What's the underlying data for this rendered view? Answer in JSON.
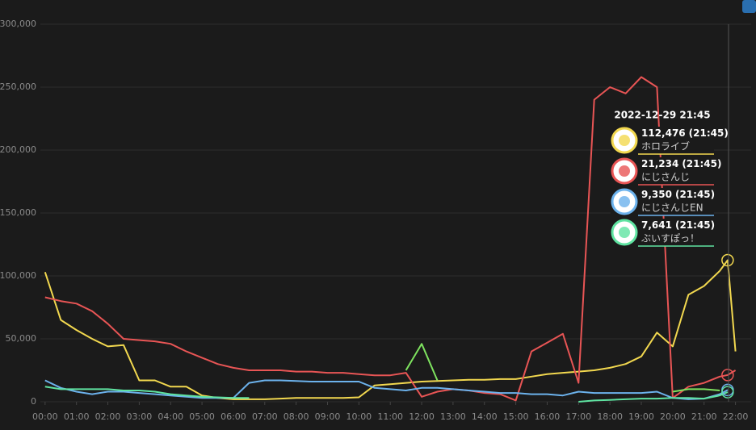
{
  "chart_data": {
    "type": "line",
    "x": [
      0,
      0.5,
      1,
      1.5,
      2,
      2.5,
      3,
      3.5,
      4,
      4.5,
      5,
      5.5,
      6,
      6.5,
      7,
      7.5,
      8,
      8.5,
      9,
      9.5,
      10,
      10.5,
      11,
      11.5,
      12,
      12.5,
      13,
      13.5,
      14,
      14.5,
      15,
      15.5,
      16,
      16.5,
      17,
      17.5,
      18,
      18.5,
      19,
      19.5,
      20,
      20.5,
      21,
      21.5,
      21.75,
      22
    ],
    "xlim": [
      -0.15,
      22.5
    ],
    "xticks": [
      {
        "value": 0,
        "label": "00:00"
      },
      {
        "value": 1,
        "label": "01:00"
      },
      {
        "value": 2,
        "label": "02:00"
      },
      {
        "value": 3,
        "label": "03:00"
      },
      {
        "value": 4,
        "label": "04:00"
      },
      {
        "value": 5,
        "label": "05:00"
      },
      {
        "value": 6,
        "label": "06:00"
      },
      {
        "value": 7,
        "label": "07:00"
      },
      {
        "value": 8,
        "label": "08:00"
      },
      {
        "value": 9,
        "label": "09:00"
      },
      {
        "value": 10,
        "label": "10:00"
      },
      {
        "value": 11,
        "label": "11:00"
      },
      {
        "value": 12,
        "label": "12:00"
      },
      {
        "value": 13,
        "label": "13:00"
      },
      {
        "value": 14,
        "label": "14:00"
      },
      {
        "value": 15,
        "label": "15:00"
      },
      {
        "value": 16,
        "label": "16:00"
      },
      {
        "value": 17,
        "label": "17:00"
      },
      {
        "value": 18,
        "label": "18:00"
      },
      {
        "value": 19,
        "label": "19:00"
      },
      {
        "value": 20,
        "label": "20:00"
      },
      {
        "value": 21,
        "label": "21:00"
      },
      {
        "value": 22,
        "label": "22:00"
      }
    ],
    "ylim": [
      0,
      300000
    ],
    "yticks": [
      0,
      {
        "value": 50000,
        "label": "50,000"
      },
      {
        "value": 100000,
        "label": "100,000"
      },
      {
        "value": 150000,
        "label": "150,000"
      },
      {
        "value": 200000,
        "label": "200,000"
      },
      {
        "value": 250000,
        "label": "250,000"
      },
      {
        "value": 300000,
        "label": "300,000"
      }
    ],
    "grid": true,
    "tooltip": {
      "title": "2022-12-29 21:45",
      "time": "(21:45)"
    },
    "series": [
      {
        "name": "ホロライブ",
        "color": "#f2d84f",
        "values": [
          103000,
          65000,
          57000,
          50000,
          44000,
          45000,
          17000,
          17000,
          12000,
          12000,
          5000,
          3000,
          2000,
          2000,
          2000,
          2500,
          3000,
          3000,
          3000,
          3000,
          3500,
          13000,
          14000,
          15000,
          16000,
          16500,
          17000,
          17500,
          17500,
          18000,
          18000,
          20000,
          22000,
          23000,
          24000,
          25000,
          27000,
          30000,
          36000,
          55000,
          44000,
          85000,
          92000,
          104000,
          112476,
          40000
        ],
        "value_labels": [
          null,
          null,
          null,
          null,
          null,
          null,
          null,
          null,
          null,
          null,
          null,
          null,
          null,
          null,
          null,
          null,
          null,
          null,
          null,
          null,
          null,
          null,
          null,
          null,
          null,
          null,
          null,
          null,
          null,
          null,
          null,
          null,
          null,
          null,
          null,
          null,
          null,
          null,
          null,
          null,
          null,
          null,
          null,
          null,
          "112,476",
          null
        ]
      },
      {
        "name": "にじさんじ",
        "color": "#e85555",
        "values": [
          83000,
          80000,
          78000,
          72000,
          62000,
          50000,
          49000,
          48000,
          46000,
          40000,
          35000,
          30000,
          27000,
          25000,
          25000,
          25000,
          24000,
          24000,
          23000,
          23000,
          22000,
          21000,
          21000,
          23000,
          4000,
          8000,
          10000,
          9000,
          7000,
          6000,
          1000,
          40000,
          47000,
          54000,
          15000,
          240000,
          250000,
          245000,
          258000,
          250000,
          3000,
          12000,
          15000,
          20000,
          21234,
          25000
        ],
        "value_labels": [
          null,
          null,
          null,
          null,
          null,
          null,
          null,
          null,
          null,
          null,
          null,
          null,
          null,
          null,
          null,
          null,
          null,
          null,
          null,
          null,
          null,
          null,
          null,
          null,
          null,
          null,
          null,
          null,
          null,
          null,
          null,
          null,
          null,
          null,
          null,
          null,
          null,
          null,
          null,
          null,
          null,
          null,
          null,
          null,
          "21,234",
          null
        ]
      },
      {
        "name": "にじさんじEN",
        "color": "#6cb2ec",
        "values": [
          17000,
          11000,
          8000,
          6000,
          8000,
          8000,
          7000,
          6000,
          5000,
          4000,
          3000,
          3000,
          3000,
          15000,
          17000,
          17000,
          16500,
          16000,
          16000,
          16000,
          16000,
          11000,
          10000,
          9000,
          11000,
          11000,
          10000,
          9000,
          8000,
          7000,
          7000,
          6000,
          6000,
          5000,
          8000,
          7000,
          7000,
          7000,
          7000,
          8000,
          3000,
          2000,
          2500,
          6000,
          9350,
          null
        ],
        "value_labels": [
          null,
          null,
          null,
          null,
          null,
          null,
          null,
          null,
          null,
          null,
          null,
          null,
          null,
          null,
          null,
          null,
          null,
          null,
          null,
          null,
          null,
          null,
          null,
          null,
          null,
          null,
          null,
          null,
          null,
          null,
          null,
          null,
          null,
          null,
          null,
          null,
          null,
          null,
          null,
          null,
          null,
          null,
          null,
          null,
          "9,350",
          null
        ]
      },
      {
        "name": "ぶいすぽっ！",
        "color": "#5fe3a1",
        "values": [
          12000,
          10000,
          10000,
          10000,
          10000,
          9000,
          9000,
          8000,
          6000,
          5000,
          4000,
          3500,
          3000,
          3000,
          null,
          null,
          null,
          null,
          null,
          null,
          null,
          null,
          null,
          null,
          null,
          null,
          null,
          null,
          null,
          null,
          null,
          null,
          null,
          null,
          0,
          1000,
          1500,
          2000,
          2500,
          2500,
          3000,
          3000,
          2500,
          5000,
          7641,
          null
        ],
        "value_labels": [
          null,
          null,
          null,
          null,
          null,
          null,
          null,
          null,
          null,
          null,
          null,
          null,
          null,
          null,
          null,
          null,
          null,
          null,
          null,
          null,
          null,
          null,
          null,
          null,
          null,
          null,
          null,
          null,
          null,
          null,
          null,
          null,
          null,
          null,
          null,
          null,
          null,
          null,
          null,
          null,
          null,
          null,
          null,
          null,
          "7,641",
          null
        ]
      },
      {
        "color": "#7ee35f",
        "values": [
          null,
          null,
          null,
          null,
          null,
          null,
          null,
          null,
          null,
          null,
          null,
          null,
          null,
          null,
          null,
          null,
          null,
          null,
          null,
          null,
          null,
          null,
          null,
          25000,
          46000,
          17000,
          null,
          null,
          null,
          null,
          null,
          null,
          null,
          null,
          null,
          null,
          null,
          null,
          null,
          null,
          8000,
          10000,
          10000,
          9000,
          null,
          null
        ]
      }
    ]
  }
}
